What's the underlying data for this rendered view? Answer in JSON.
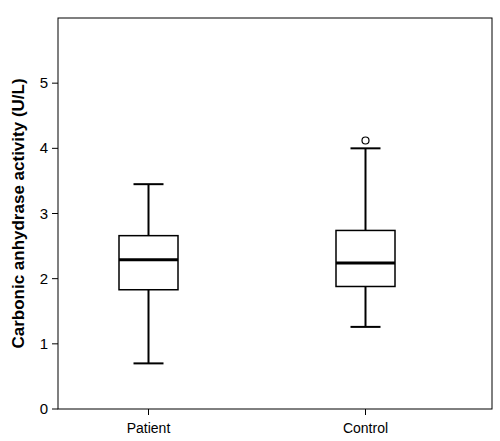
{
  "chart_data": {
    "type": "box",
    "y_label": "Carbonic anhydrase activity (U/L)",
    "categories": [
      "Patient",
      "Control"
    ],
    "stats": [
      {
        "min": 0.7,
        "q1": 1.83,
        "median": 2.29,
        "q3": 2.66,
        "max": 3.45
      },
      {
        "min": 1.26,
        "q1": 1.88,
        "median": 2.24,
        "q3": 2.74,
        "max": 4.0,
        "outliers": [
          4.12
        ]
      }
    ],
    "color": "#ffffff",
    "ylim": [
      0,
      6
    ],
    "yticks": [
      0,
      1,
      2,
      3,
      4,
      5
    ],
    "grid": false
  }
}
